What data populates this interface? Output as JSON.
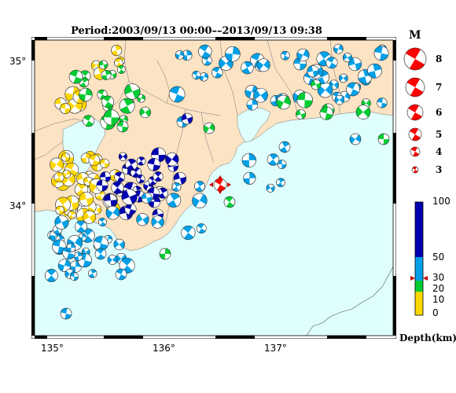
{
  "title": "Period:2003/09/13 00:00––2013/09/13 09:38",
  "axes": {
    "lat_labels": [
      "35°",
      "34°"
    ],
    "lon_labels": [
      "135°",
      "136°",
      "137°"
    ]
  },
  "magnitude_legend": {
    "heading": "M",
    "values": [
      "8",
      "7",
      "6",
      "5",
      "4",
      "3"
    ]
  },
  "depth_legend": {
    "ticks": [
      "100",
      "50",
      "30",
      "20",
      "10",
      "0"
    ],
    "label": "Depth(km)",
    "marker_depth": 30
  },
  "colors": {
    "land": "#fbe3c4",
    "sea": "#dffffe",
    "shallow": "#ffd700",
    "mid": "#00cc33",
    "deep": "#00a0e8",
    "deepest": "#0000b0",
    "target": "#ff0000"
  },
  "target_event": {
    "lon": 136.45,
    "lat": 34.1,
    "magnitude": 4.5,
    "depth_km": 30
  }
}
